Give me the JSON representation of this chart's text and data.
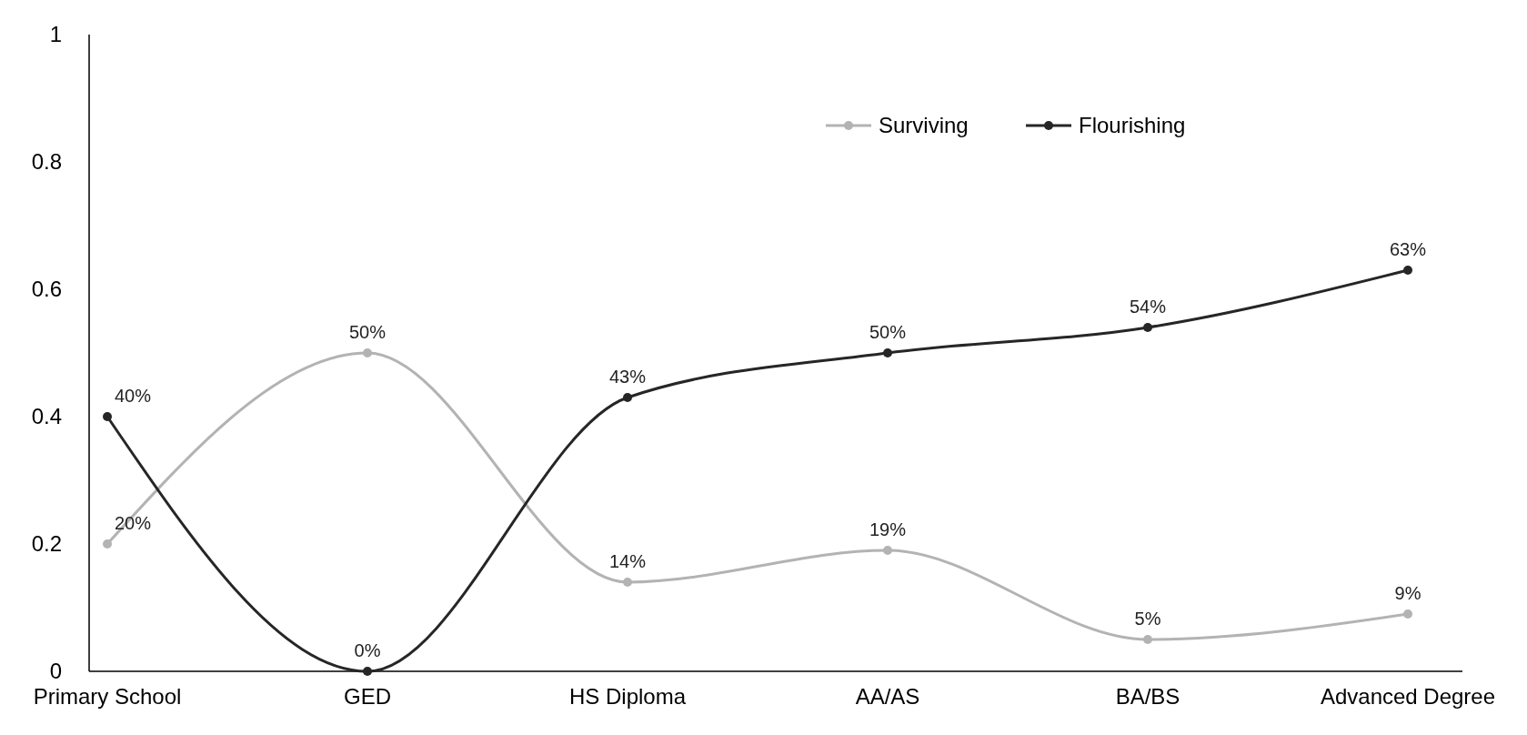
{
  "chart_data": {
    "type": "line",
    "categories": [
      "Primary School",
      "GED",
      "HS Diploma",
      "AA/AS",
      "BA/BS",
      "Advanced Degree"
    ],
    "series": [
      {
        "name": "Surviving",
        "color": "#b3b3b3",
        "values": [
          0.2,
          0.5,
          0.14,
          0.19,
          0.05,
          0.09
        ],
        "value_labels": [
          "20%",
          "50%",
          "14%",
          "19%",
          "5%",
          "9%"
        ]
      },
      {
        "name": "Flourishing",
        "color": "#262626",
        "values": [
          0.4,
          0,
          0.43,
          0.5,
          0.54,
          0.63
        ],
        "value_labels": [
          "40%",
          "0%",
          "43%",
          "50%",
          "54%",
          "63%"
        ]
      }
    ],
    "ylim": [
      0,
      1
    ],
    "yticks": [
      0,
      0.2,
      0.4,
      0.6,
      0.8,
      1
    ],
    "grid": false,
    "legend": "top right",
    "marker": "circle"
  }
}
